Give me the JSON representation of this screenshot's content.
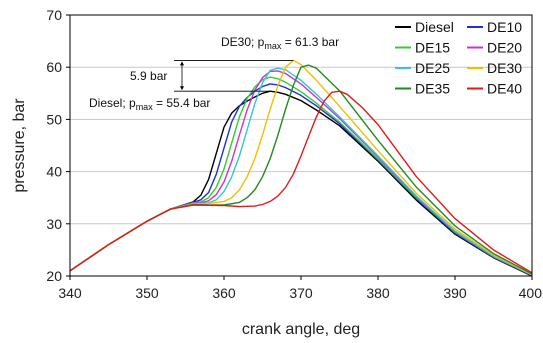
{
  "chart_data": {
    "type": "line",
    "xlabel": "crank angle, deg",
    "ylabel": "pressure, bar",
    "xlim": [
      340,
      400
    ],
    "ylim": [
      20,
      70
    ],
    "xticks": [
      "340",
      "350",
      "360",
      "370",
      "380",
      "390",
      "400"
    ],
    "yticks": [
      "20",
      "30",
      "40",
      "50",
      "60",
      "70"
    ],
    "grid": "horizontal",
    "legend_position": "top-right",
    "legend_columns": 2,
    "annotations": {
      "diff_label": "5.9 bar",
      "de30_prefix": "DE30; p",
      "de30_sub": "max",
      "de30_suffix": " = 61.3 bar",
      "diesel_prefix": "Diesel; p",
      "diesel_sub": "max",
      "diesel_suffix": " = 55.4 bar"
    },
    "series": [
      {
        "name": "Diesel",
        "color": "#000000",
        "x": [
          340,
          345,
          350,
          353,
          356,
          357,
          358,
          359,
          360,
          361,
          362,
          363,
          364,
          365,
          366,
          367,
          368,
          370,
          372,
          375,
          380,
          385,
          390,
          395,
          400
        ],
        "y": [
          21,
          26,
          30.5,
          32.8,
          34.2,
          35.5,
          38.5,
          43.5,
          48.5,
          51.2,
          52.6,
          53.5,
          54.3,
          55,
          55.4,
          55.2,
          54.8,
          53.6,
          51.8,
          48.8,
          42,
          34.5,
          28,
          23.5,
          20
        ]
      },
      {
        "name": "DE10",
        "color": "#1f2fd6",
        "x": [
          340,
          345,
          350,
          353,
          356,
          357,
          358,
          359,
          360,
          361,
          362,
          363,
          364,
          365,
          366,
          367,
          368,
          370,
          372,
          375,
          380,
          385,
          390,
          395,
          400
        ],
        "y": [
          21,
          26,
          30.5,
          32.8,
          34.1,
          34.6,
          36,
          39.5,
          44.5,
          49.5,
          52.5,
          54.2,
          55.4,
          56.3,
          56.8,
          56.6,
          56.1,
          54.6,
          52.6,
          49.2,
          42.2,
          34.8,
          28.2,
          23.6,
          20.1
        ]
      },
      {
        "name": "DE15",
        "color": "#33cc33",
        "x": [
          340,
          345,
          350,
          353,
          356,
          357,
          358,
          359,
          360,
          361,
          362,
          363,
          364,
          365,
          366,
          367,
          368,
          370,
          372,
          375,
          380,
          385,
          390,
          395,
          400
        ],
        "y": [
          21,
          26,
          30.5,
          32.8,
          34,
          34.2,
          35,
          37,
          40.5,
          45.5,
          50.5,
          54,
          56.2,
          57.6,
          58.1,
          57.8,
          57.1,
          55.3,
          53.1,
          49.5,
          42.4,
          35,
          28.4,
          23.7,
          20.2
        ]
      },
      {
        "name": "DE20",
        "color": "#cc33cc",
        "x": [
          340,
          345,
          350,
          353,
          356,
          357,
          358,
          359,
          360,
          361,
          362,
          363,
          364,
          365,
          366,
          367,
          368,
          370,
          372,
          375,
          380,
          385,
          390,
          395,
          400
        ],
        "y": [
          21,
          26,
          30.5,
          32.8,
          34,
          34,
          34.4,
          35.6,
          38,
          42,
          47,
          51.8,
          55.6,
          58,
          59.2,
          59.3,
          58.8,
          56.8,
          54.2,
          50.2,
          42.8,
          35.2,
          28.5,
          23.7,
          20.2
        ]
      },
      {
        "name": "DE25",
        "color": "#33c6d6",
        "x": [
          340,
          345,
          350,
          353,
          356,
          357,
          358,
          359,
          360,
          361,
          362,
          363,
          364,
          365,
          366,
          367,
          368,
          370,
          372,
          375,
          380,
          385,
          390,
          395,
          400
        ],
        "y": [
          21,
          26,
          30.5,
          32.8,
          33.9,
          33.9,
          34,
          34.6,
          36.2,
          39,
          43,
          48,
          53,
          57,
          59.4,
          59.8,
          59.5,
          57.5,
          54.8,
          50.5,
          43,
          35.3,
          28.6,
          23.8,
          20.2
        ]
      },
      {
        "name": "DE30",
        "color": "#f0c000",
        "x": [
          340,
          345,
          350,
          353,
          356,
          358,
          360,
          361,
          362,
          363,
          364,
          365,
          366,
          367,
          368,
          369,
          370,
          372,
          375,
          380,
          385,
          390,
          395,
          400
        ],
        "y": [
          21,
          26,
          30.5,
          32.8,
          33.8,
          33.9,
          34.3,
          35,
          36.5,
          39,
          42.5,
          47,
          52,
          56.5,
          60,
          61.3,
          60.5,
          57.5,
          52.5,
          44,
          35.8,
          29,
          24,
          20.3
        ]
      },
      {
        "name": "DE35",
        "color": "#228b22",
        "x": [
          340,
          345,
          350,
          353,
          356,
          358,
          360,
          362,
          363,
          364,
          365,
          366,
          367,
          368,
          369,
          370,
          371,
          372,
          375,
          380,
          385,
          390,
          395,
          400
        ],
        "y": [
          21,
          26,
          30.5,
          32.8,
          33.7,
          33.6,
          33.6,
          34.1,
          35,
          36.5,
          39,
          42.5,
          47,
          52,
          56.5,
          60,
          60.4,
          59.8,
          55.5,
          46,
          37,
          29.6,
          24.3,
          20.4
        ]
      },
      {
        "name": "DE40",
        "color": "#e31a1c",
        "x": [
          340,
          345,
          350,
          353,
          356,
          360,
          362,
          364,
          365,
          366,
          367,
          368,
          369,
          370,
          371,
          372,
          373,
          374,
          375,
          376,
          378,
          380,
          385,
          390,
          395,
          400
        ],
        "y": [
          21,
          26,
          30.5,
          32.8,
          33.6,
          33.5,
          33.3,
          33.4,
          33.7,
          34.3,
          35.3,
          37,
          39.5,
          43,
          46.8,
          50.5,
          53.5,
          55.2,
          55.4,
          54.8,
          52.2,
          49,
          39,
          31,
          25,
          20.6
        ]
      }
    ]
  }
}
